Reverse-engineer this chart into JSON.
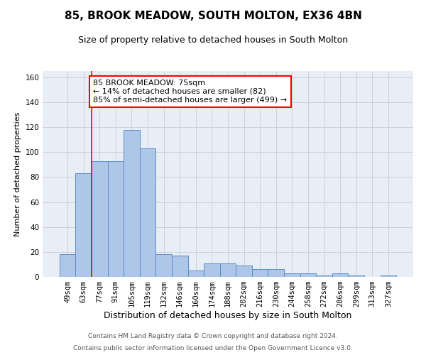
{
  "title": "85, BROOK MEADOW, SOUTH MOLTON, EX36 4BN",
  "subtitle": "Size of property relative to detached houses in South Molton",
  "xlabel": "Distribution of detached houses by size in South Molton",
  "ylabel": "Number of detached properties",
  "footnote1": "Contains HM Land Registry data © Crown copyright and database right 2024.",
  "footnote2": "Contains public sector information licensed under the Open Government Licence v3.0.",
  "categories": [
    "49sqm",
    "63sqm",
    "77sqm",
    "91sqm",
    "105sqm",
    "119sqm",
    "132sqm",
    "146sqm",
    "160sqm",
    "174sqm",
    "188sqm",
    "202sqm",
    "216sqm",
    "230sqm",
    "244sqm",
    "258sqm",
    "272sqm",
    "286sqm",
    "299sqm",
    "313sqm",
    "327sqm"
  ],
  "values": [
    18,
    83,
    93,
    93,
    118,
    103,
    18,
    17,
    5,
    11,
    11,
    9,
    6,
    6,
    3,
    3,
    1,
    3,
    1,
    0,
    1
  ],
  "bar_color": "#aec6e8",
  "bar_edge_color": "#5b8ec4",
  "annotation_text": "85 BROOK MEADOW: 75sqm\n← 14% of detached houses are smaller (82)\n85% of semi-detached houses are larger (499) →",
  "annotation_box_color": "white",
  "annotation_box_edge_color": "red",
  "vline_x": 1.5,
  "vline_color": "red",
  "ylim": [
    0,
    165
  ],
  "yticks": [
    0,
    20,
    40,
    60,
    80,
    100,
    120,
    140,
    160
  ],
  "grid_color": "#cccccc",
  "background_color": "#e8eef8",
  "title_fontsize": 11,
  "subtitle_fontsize": 9,
  "xlabel_fontsize": 9,
  "ylabel_fontsize": 8,
  "tick_fontsize": 7.5,
  "annotation_fontsize": 8,
  "footnote_fontsize": 6.5
}
